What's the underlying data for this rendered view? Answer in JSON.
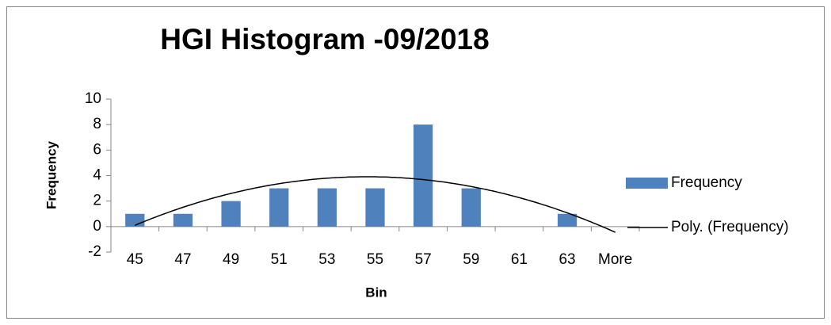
{
  "chart_data": {
    "type": "bar",
    "title": "HGI Histogram -09/2018",
    "x_label": "Bin",
    "y_label": "Frequency",
    "categories": [
      "45",
      "47",
      "49",
      "51",
      "53",
      "55",
      "57",
      "59",
      "61",
      "63",
      "More"
    ],
    "series": [
      {
        "name": "Frequency",
        "color": "#4f81bd",
        "values": [
          1,
          1,
          2,
          3,
          3,
          3,
          8,
          3,
          0,
          1,
          0
        ]
      }
    ],
    "trendline": {
      "name": "Poly. (Frequency)",
      "type": "polynomial",
      "order": 2,
      "color": "#000000"
    },
    "ylim": [
      -2,
      10
    ],
    "yticks": [
      -2,
      0,
      2,
      4,
      6,
      8,
      10
    ],
    "grid": false,
    "legend": "right"
  }
}
